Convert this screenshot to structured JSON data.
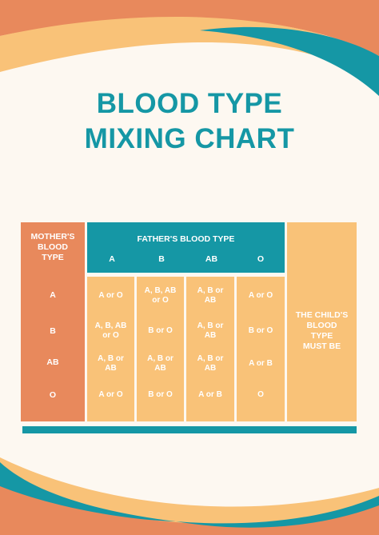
{
  "title": {
    "line1": "BLOOD TYPE",
    "line2": "MIXING CHART"
  },
  "colors": {
    "teal": "#1597a5",
    "orange": "#e8895c",
    "light_orange": "#f9c278",
    "background": "#fdf8f1"
  },
  "table": {
    "mother_header": [
      "MOTHER'S",
      "BLOOD",
      "TYPE"
    ],
    "father_header": "FATHER'S BLOOD TYPE",
    "father_types": [
      "A",
      "B",
      "AB",
      "O"
    ],
    "mother_types": [
      "A",
      "B",
      "AB",
      "O"
    ],
    "result_columns": [
      [
        [
          "A or O"
        ],
        [
          "A, B, AB",
          "or O"
        ],
        [
          "A, B or",
          "AB"
        ],
        [
          "A or O"
        ]
      ],
      [
        [
          "A, B, AB",
          "or O"
        ],
        [
          "B or O"
        ],
        [
          "A, B or",
          "AB"
        ],
        [
          "B or O"
        ]
      ],
      [
        [
          "A, B or",
          "AB"
        ],
        [
          "A, B or",
          "AB"
        ],
        [
          "A, B or",
          "AB"
        ],
        [
          "A or B"
        ]
      ],
      [
        [
          "A or O"
        ],
        [
          "B or O"
        ],
        [
          "A or B"
        ],
        [
          "O"
        ]
      ]
    ],
    "child_label": [
      "THE CHILD'S",
      "BLOOD",
      "TYPE",
      "MUST BE"
    ]
  }
}
